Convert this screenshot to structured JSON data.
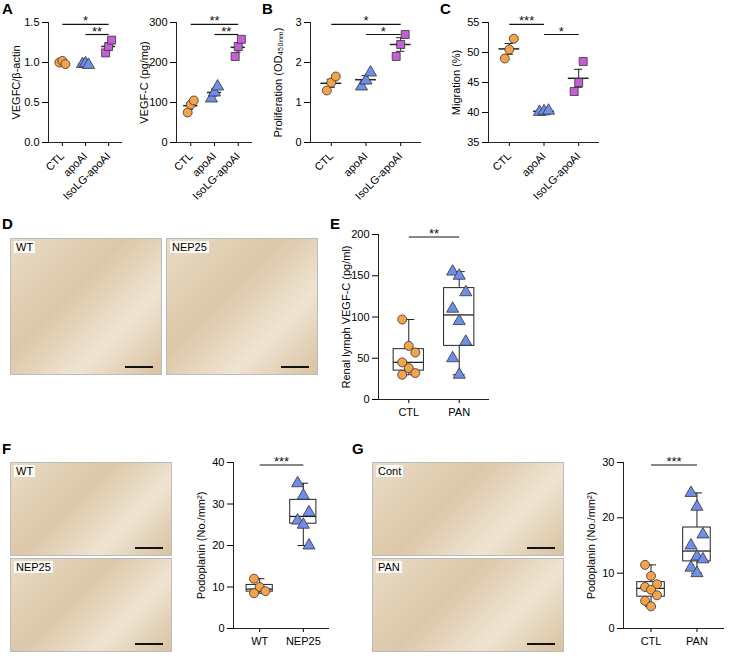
{
  "chart_data": [
    {
      "panel": "A",
      "type": "scatter",
      "ylabel": "VEGFC/β-actin",
      "ylim": [
        0,
        1.5
      ],
      "yticks": [
        {
          "value": 0,
          "label": "0.0"
        },
        {
          "value": 0.5,
          "label": "0.5"
        },
        {
          "value": 1,
          "label": "1.0"
        },
        {
          "value": 1.5,
          "label": "1.5"
        }
      ],
      "series": [
        {
          "name": "CTL",
          "color": "#F4A24C",
          "marker": "circle",
          "values": [
            1.0,
            1.02,
            0.98
          ],
          "mean": 1.0,
          "sem": 0.012
        },
        {
          "name": "apoAI",
          "color": "#6E8EE8",
          "marker": "triangle",
          "values": [
            0.98,
            0.99,
            0.97
          ],
          "mean": 0.98,
          "sem": 0.006
        },
        {
          "name": "IsoLG-apoAI",
          "color": "#C45FD6",
          "marker": "square",
          "values": [
            1.12,
            1.2,
            1.28
          ],
          "mean": 1.2,
          "sem": 0.046
        }
      ],
      "significance": [
        {
          "between": [
            0,
            2
          ],
          "label": "*"
        },
        {
          "between": [
            1,
            2
          ],
          "label": "**"
        }
      ]
    },
    {
      "type": "scatter",
      "ylabel": "VEGF-C (pg/mg)",
      "ylim": [
        0,
        300
      ],
      "yticks": [
        0,
        100,
        200,
        300
      ],
      "series": [
        {
          "name": "CTL",
          "color": "#F4A24C",
          "marker": "circle",
          "values": [
            75,
            95,
            105
          ],
          "mean": 92,
          "sem": 9
        },
        {
          "name": "apoAI",
          "color": "#6E8EE8",
          "marker": "triangle",
          "values": [
            110,
            125,
            140
          ],
          "mean": 125,
          "sem": 9
        },
        {
          "name": "IsoLG-apoAI",
          "color": "#C45FD6",
          "marker": "square",
          "values": [
            215,
            240,
            258
          ],
          "mean": 238,
          "sem": 12
        }
      ],
      "significance": [
        {
          "between": [
            0,
            2
          ],
          "label": "**"
        },
        {
          "between": [
            1,
            2
          ],
          "label": "**"
        }
      ]
    },
    {
      "panel": "B",
      "type": "scatter",
      "ylabel": "Proliferation (OD₄₅₀ₙₘ)",
      "ylim": [
        0,
        3
      ],
      "yticks": [
        0,
        1,
        2,
        3
      ],
      "series": [
        {
          "name": "CTL",
          "color": "#F4A24C",
          "marker": "circle",
          "values": [
            1.3,
            1.5,
            1.65
          ],
          "mean": 1.48,
          "sem": 0.1
        },
        {
          "name": "apoAI",
          "color": "#6E8EE8",
          "marker": "triangle",
          "values": [
            1.4,
            1.55,
            1.75
          ],
          "mean": 1.57,
          "sem": 0.1
        },
        {
          "name": "IsoLG-apoAI",
          "color": "#C45FD6",
          "marker": "square",
          "values": [
            2.15,
            2.45,
            2.7
          ],
          "mean": 2.45,
          "sem": 0.17
        }
      ],
      "significance": [
        {
          "between": [
            0,
            2
          ],
          "label": "*"
        },
        {
          "between": [
            1,
            2
          ],
          "label": "*"
        }
      ]
    },
    {
      "panel": "C",
      "type": "scatter",
      "ylabel": "Migration (%)",
      "ylim": [
        35,
        55
      ],
      "yticks": [
        35,
        40,
        45,
        50,
        55
      ],
      "series": [
        {
          "name": "CTL",
          "color": "#F4A24C",
          "marker": "circle",
          "values": [
            49,
            50.5,
            52.3
          ],
          "mean": 50.6,
          "sem": 0.9
        },
        {
          "name": "apoAI",
          "color": "#6E8EE8",
          "marker": "triangle",
          "values": [
            40.1,
            40.2,
            40.3
          ],
          "mean": 40.2,
          "sem": 0.1
        },
        {
          "name": "IsoLG-apoAI",
          "color": "#C45FD6",
          "marker": "square",
          "values": [
            43.5,
            45,
            48.5
          ],
          "mean": 45.7,
          "sem": 1.5
        }
      ],
      "significance": [
        {
          "between": [
            0,
            1
          ],
          "label": "***"
        },
        {
          "between": [
            1,
            2
          ],
          "label": "*"
        }
      ]
    },
    {
      "panel": "D",
      "type": "image",
      "labels": [
        "WT",
        "NEP25"
      ]
    },
    {
      "panel": "E",
      "type": "box",
      "ylabel": "Renal lymph VEGF-C (pg/ml)",
      "ylim": [
        0,
        200
      ],
      "yticks": [
        0,
        50,
        100,
        150,
        200
      ],
      "series": [
        {
          "name": "CTL",
          "color": "#F4A24C",
          "marker": "circle",
          "values": [
            97,
            65,
            57,
            45,
            38,
            32,
            30
          ]
        },
        {
          "name": "PAN",
          "color": "#6E8EE8",
          "marker": "triangle",
          "values": [
            155,
            150,
            130,
            110,
            95,
            70,
            50,
            30
          ]
        }
      ],
      "significance": [
        {
          "between": [
            0,
            1
          ],
          "label": "**"
        }
      ]
    },
    {
      "panel": "F",
      "type": "image",
      "labels": [
        "WT",
        "NEP25"
      ]
    },
    {
      "type": "box",
      "ylabel": "Podoplanin (No./mm²)",
      "ylim": [
        0,
        40
      ],
      "yticks": [
        0,
        10,
        20,
        30,
        40
      ],
      "series": [
        {
          "name": "WT",
          "color": "#F4A24C",
          "marker": "circle",
          "values": [
            12,
            10,
            9,
            8.5
          ]
        },
        {
          "name": "NEP25",
          "color": "#6E8EE8",
          "marker": "triangle",
          "values": [
            35,
            32,
            28,
            26,
            25,
            20
          ]
        }
      ],
      "significance": [
        {
          "between": [
            0,
            1
          ],
          "label": "***"
        }
      ]
    },
    {
      "panel": "G",
      "type": "image",
      "labels": [
        "Cont",
        "PAN"
      ]
    },
    {
      "type": "box",
      "ylabel": "Podoplanin (No./mm²)",
      "ylim": [
        0,
        30
      ],
      "yticks": [
        0,
        10,
        20,
        30
      ],
      "series": [
        {
          "name": "CTL",
          "color": "#F4A24C",
          "marker": "circle",
          "values": [
            11.5,
            9.5,
            8,
            7.5,
            7,
            6,
            5,
            4
          ]
        },
        {
          "name": "PAN",
          "color": "#6E8EE8",
          "marker": "triangle",
          "values": [
            24.5,
            22,
            17,
            15,
            13,
            12.5,
            11,
            10
          ]
        }
      ],
      "significance": [
        {
          "between": [
            0,
            1
          ],
          "label": "***"
        }
      ]
    }
  ]
}
